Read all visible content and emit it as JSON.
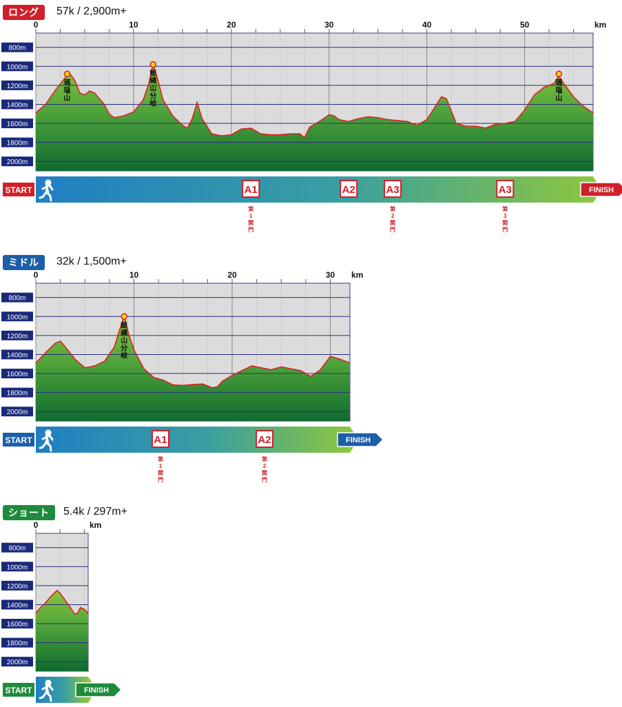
{
  "colors": {
    "long": "#d0202a",
    "middle": "#1d5ea8",
    "short": "#1f8a3c",
    "profile_line": "#e02020",
    "plot_bg": "#dcdcdc",
    "axis_label_bg": "#1a2a7a",
    "bar_start": "#1f7fc4",
    "bar_end": "#8cc63f",
    "aid_red": "#d0202a"
  },
  "common": {
    "unit_km": "km",
    "start_label": "START",
    "finish_label": "FINISH",
    "runner_icon": "runner-icon",
    "y_ticks": [
      "2000m",
      "1800m",
      "1600m",
      "1400m",
      "1200m",
      "1000m",
      "800m"
    ]
  },
  "sections": [
    {
      "id": "long",
      "badge": "ロング",
      "subtitle": "57k / 2,900m+",
      "chart_data": {
        "type": "area",
        "xlabel": "km",
        "ylabel": "",
        "xlim": [
          0,
          57
        ],
        "ylim": [
          700,
          2150
        ],
        "x_ticks": [
          0,
          10,
          20,
          30,
          40,
          50
        ],
        "y_ticks": [
          800,
          1000,
          1200,
          1400,
          1600,
          1800,
          2000
        ],
        "grid": true,
        "series": [
          {
            "x": [
              0,
              1,
              2,
              3,
              3.5,
              4,
              4.5,
              5,
              5.5,
              6,
              7,
              7.5,
              8,
              9,
              10,
              11,
              11.5,
              12,
              12.5,
              13,
              14,
              15,
              15.5,
              16,
              16.5,
              17,
              18,
              19,
              20,
              21,
              22,
              23,
              24,
              25,
              26,
              27,
              27.5,
              28,
              29,
              30,
              30.5,
              31,
              32,
              33,
              34,
              35,
              36,
              37,
              38,
              39,
              40,
              41,
              41.5,
              42,
              43,
              44,
              45,
              46,
              47,
              48,
              49,
              50,
              51,
              52,
              53,
              53.5,
              54,
              55,
              56,
              57
            ],
            "y": [
              1310,
              1400,
              1550,
              1680,
              1720,
              1650,
              1520,
              1500,
              1540,
              1520,
              1400,
              1300,
              1260,
              1280,
              1320,
              1450,
              1600,
              1820,
              1650,
              1450,
              1280,
              1180,
              1150,
              1250,
              1420,
              1250,
              1090,
              1070,
              1080,
              1140,
              1150,
              1090,
              1080,
              1080,
              1090,
              1090,
              1050,
              1160,
              1220,
              1290,
              1280,
              1240,
              1220,
              1250,
              1270,
              1260,
              1240,
              1230,
              1220,
              1180,
              1240,
              1400,
              1480,
              1460,
              1200,
              1170,
              1170,
              1150,
              1190,
              1200,
              1220,
              1340,
              1500,
              1580,
              1620,
              1700,
              1620,
              1480,
              1380,
              1310
            ]
          }
        ],
        "peaks": [
          {
            "km": 3.2,
            "elev": 1720,
            "label": "瑪瑙山"
          },
          {
            "km": 12,
            "elev": 1820,
            "label": "飯縄山分岐"
          },
          {
            "km": 53.5,
            "elev": 1720,
            "label": "瑪瑙山"
          }
        ],
        "aid_stations": [
          {
            "km": 22,
            "label": "A1",
            "note": "第1関門"
          },
          {
            "km": 32,
            "label": "A2",
            "note": ""
          },
          {
            "km": 36.5,
            "label": "A3",
            "note": "第2関門"
          },
          {
            "km": 48,
            "label": "A3",
            "note": "第3関門"
          }
        ]
      }
    },
    {
      "id": "middle",
      "badge": "ミドル",
      "subtitle": "32k / 1,500m+",
      "chart_data": {
        "type": "area",
        "xlabel": "km",
        "ylabel": "",
        "xlim": [
          0,
          32
        ],
        "ylim": [
          700,
          2150
        ],
        "x_ticks": [
          0,
          10,
          20,
          30
        ],
        "y_ticks": [
          800,
          1000,
          1200,
          1400,
          1600,
          1800,
          2000
        ],
        "grid": true,
        "series": [
          {
            "x": [
              0,
              1,
              2,
              2.5,
              3,
              4,
              5,
              6,
              7,
              8,
              8.5,
              9,
              9.5,
              10,
              11,
              12,
              13,
              14,
              15,
              16,
              17,
              18,
              18.5,
              19,
              20,
              21,
              22,
              23,
              24,
              25,
              26,
              27,
              28,
              29,
              30,
              31,
              32
            ],
            "y": [
              1310,
              1420,
              1520,
              1540,
              1480,
              1350,
              1260,
              1280,
              1330,
              1480,
              1650,
              1800,
              1600,
              1450,
              1250,
              1160,
              1130,
              1080,
              1075,
              1085,
              1090,
              1050,
              1060,
              1120,
              1180,
              1230,
              1280,
              1260,
              1240,
              1270,
              1250,
              1230,
              1170,
              1240,
              1380,
              1350,
              1310
            ]
          }
        ],
        "peaks": [
          {
            "km": 9,
            "elev": 1800,
            "label": "飯縄山分岐"
          }
        ],
        "aid_stations": [
          {
            "km": 12.7,
            "label": "A1",
            "note": "第1関門"
          },
          {
            "km": 23.3,
            "label": "A2",
            "note": "第2関門"
          }
        ]
      }
    },
    {
      "id": "short",
      "badge": "ショート",
      "subtitle": "5.4k / 297m+",
      "chart_data": {
        "type": "area",
        "xlabel": "km",
        "ylabel": "",
        "xlim": [
          0,
          5.4
        ],
        "ylim": [
          700,
          2150
        ],
        "x_ticks": [
          0
        ],
        "y_ticks": [
          800,
          1000,
          1200,
          1400,
          1600,
          1800,
          2000
        ],
        "grid": true,
        "series": [
          {
            "x": [
              0,
              0.5,
              1,
              1.5,
              2,
              2.2,
              2.5,
              3,
              3.5,
              4,
              4.3,
              4.6,
              5,
              5.4
            ],
            "y": [
              1310,
              1370,
              1420,
              1480,
              1530,
              1550,
              1520,
              1450,
              1380,
              1300,
              1310,
              1370,
              1350,
              1310
            ]
          }
        ],
        "peaks": [],
        "aid_stations": []
      }
    }
  ]
}
